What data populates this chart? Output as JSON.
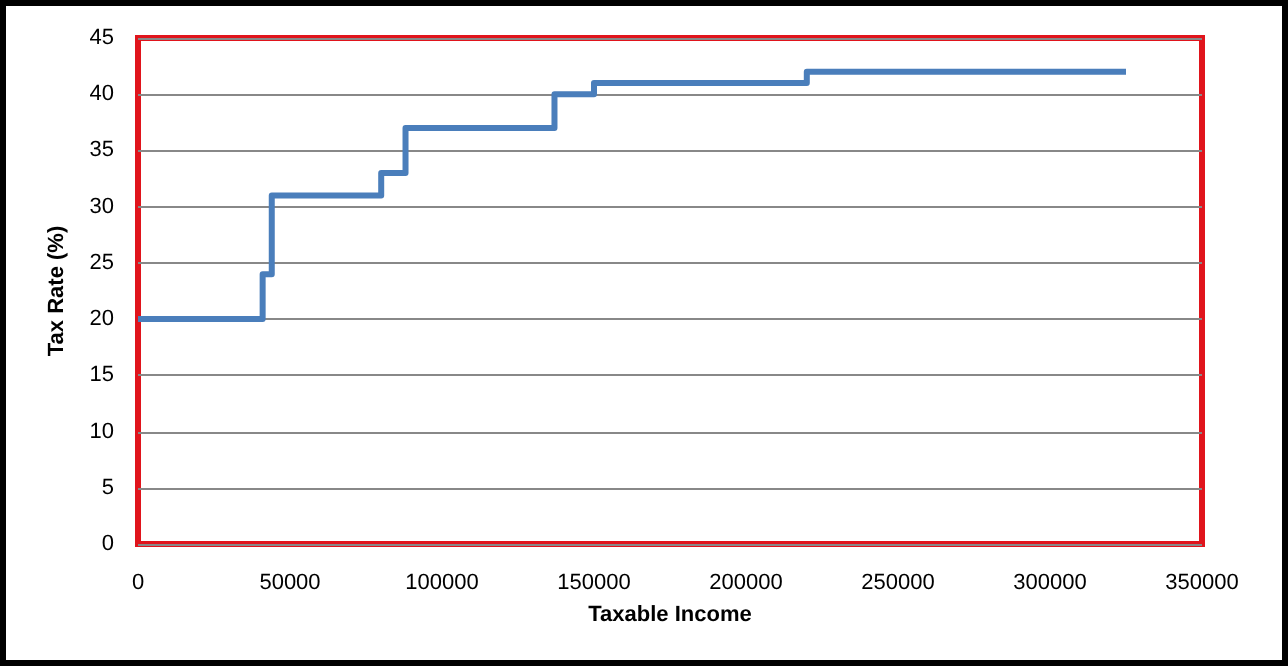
{
  "chart_data": {
    "type": "step",
    "xlabel": "Taxable Income",
    "ylabel": "Tax Rate (%)",
    "series": [
      {
        "color": "#4a7ebb",
        "x": [
          0,
          41000,
          44000,
          80000,
          88000,
          137000,
          150000,
          220000,
          325000
        ],
        "values": [
          20,
          24,
          31,
          33,
          37,
          40,
          41,
          42,
          42
        ]
      }
    ],
    "xlim": [
      0,
      350000
    ],
    "xticks": [
      0,
      50000,
      100000,
      150000,
      200000,
      250000,
      300000,
      350000
    ],
    "ylim": [
      0,
      45
    ],
    "yticks": [
      0,
      5,
      10,
      15,
      20,
      25,
      30,
      35,
      40,
      45
    ],
    "grid": "y",
    "marker": "none",
    "line_style": "solid"
  }
}
